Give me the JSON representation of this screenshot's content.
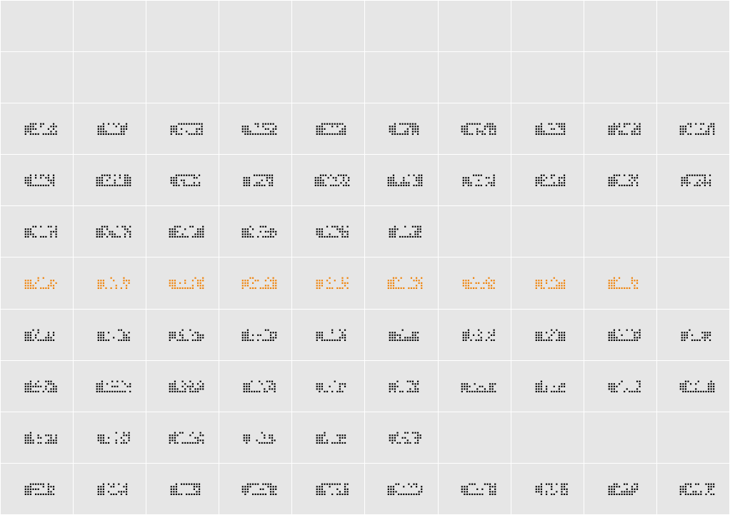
{
  "colors": {
    "background": "#e6e6e6",
    "gridline": "#ffffff",
    "glyph": "#000000",
    "highlight": "#f07f00"
  },
  "rows": [
    {
      "kind": "empty",
      "cells": []
    },
    {
      "kind": "empty",
      "cells": []
    },
    {
      "kind": "glyphs",
      "highlight": false,
      "cells": [
        "A",
        "B",
        "C",
        "D",
        "E",
        "F",
        "G",
        "H",
        "I",
        "J"
      ]
    },
    {
      "kind": "glyphs",
      "highlight": false,
      "cells": [
        "K",
        "L",
        "M",
        "N",
        "O",
        "P",
        "Q",
        "R",
        "S",
        "T"
      ]
    },
    {
      "kind": "glyphs",
      "highlight": false,
      "cells": [
        "U",
        "V",
        "W",
        "X",
        "Y",
        "Z"
      ]
    },
    {
      "kind": "glyphs",
      "highlight": true,
      "cells": [
        "f1",
        "f2",
        "f3",
        "f4",
        "f5",
        "f6",
        "f7",
        "f8",
        "f9"
      ]
    },
    {
      "kind": "glyphs",
      "highlight": false,
      "cells": [
        "a",
        "b",
        "c",
        "d",
        "e",
        "f",
        "g",
        "h",
        "i",
        "j"
      ]
    },
    {
      "kind": "glyphs",
      "highlight": false,
      "cells": [
        "k",
        "l",
        "m",
        "n",
        "o",
        "p",
        "q",
        "r",
        "s",
        "t"
      ]
    },
    {
      "kind": "glyphs",
      "highlight": false,
      "cells": [
        "u",
        "v",
        "w",
        "x",
        "y",
        "z"
      ]
    },
    {
      "kind": "glyphs",
      "highlight": false,
      "cells": [
        "1",
        "2",
        "3",
        "4",
        "5",
        "6",
        "7",
        "8",
        "9",
        "0"
      ]
    }
  ]
}
